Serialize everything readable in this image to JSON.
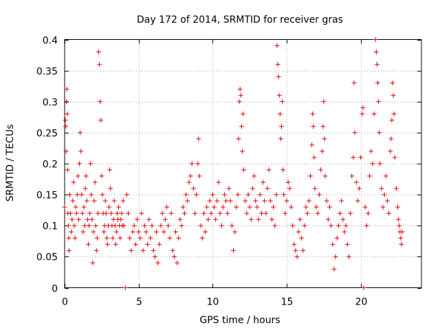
{
  "chart_data": {
    "type": "scatter",
    "title": "Day 172 of 2014, SRMTID for receiver gras",
    "xlabel": "GPS time / hours",
    "ylabel": "SRMTID / TECUs",
    "xlim": [
      0,
      24.1
    ],
    "ylim": [
      0,
      0.4
    ],
    "xticks": [
      0,
      5,
      10,
      15,
      20
    ],
    "xtick_labels": [
      "0",
      "5",
      "10",
      "15",
      "20"
    ],
    "yticks": [
      0,
      0.05,
      0.1,
      0.15,
      0.2,
      0.25,
      0.3,
      0.35,
      0.4
    ],
    "ytick_labels": [
      "0",
      "0.05",
      "0.1",
      "0.15",
      "0.2",
      "0.25",
      "0.3",
      "0.35",
      "0.4"
    ],
    "grid": true,
    "marker": "+",
    "color": "#e00000",
    "series": [
      {
        "name": "SRMTID",
        "points": [
          [
            0.0,
            0.13
          ],
          [
            0.05,
            0.27
          ],
          [
            0.08,
            0.26
          ],
          [
            0.1,
            0.22
          ],
          [
            0.12,
            0.3
          ],
          [
            0.15,
            0.32
          ],
          [
            0.18,
            0.28
          ],
          [
            0.2,
            0.19
          ],
          [
            0.22,
            0.12
          ],
          [
            0.25,
            0.1
          ],
          [
            0.28,
            0.08
          ],
          [
            0.3,
            0.06
          ],
          [
            0.35,
            0.15
          ],
          [
            0.4,
            0.12
          ],
          [
            0.45,
            0.09
          ],
          [
            0.5,
            0.11
          ],
          [
            0.55,
            0.14
          ],
          [
            0.6,
            0.17
          ],
          [
            0.65,
            0.1
          ],
          [
            0.7,
            0.08
          ],
          [
            0.75,
            0.13
          ],
          [
            0.8,
            0.12
          ],
          [
            0.85,
            0.15
          ],
          [
            0.9,
            0.18
          ],
          [
            0.95,
            0.11
          ],
          [
            1.0,
            0.2
          ],
          [
            1.05,
            0.25
          ],
          [
            1.1,
            0.22
          ],
          [
            1.15,
            0.15
          ],
          [
            1.2,
            0.12
          ],
          [
            1.25,
            0.09
          ],
          [
            1.3,
            0.13
          ],
          [
            1.35,
            0.1
          ],
          [
            1.4,
            0.16
          ],
          [
            1.45,
            0.18
          ],
          [
            1.5,
            0.14
          ],
          [
            1.55,
            0.11
          ],
          [
            1.6,
            0.07
          ],
          [
            1.65,
            0.1
          ],
          [
            1.7,
            0.12
          ],
          [
            1.75,
            0.2
          ],
          [
            1.8,
            0.15
          ],
          [
            1.85,
            0.11
          ],
          [
            1.9,
            0.04
          ],
          [
            1.95,
            0.09
          ],
          [
            2.0,
            0.14
          ],
          [
            2.05,
            0.17
          ],
          [
            2.1,
            0.1
          ],
          [
            2.15,
            0.06
          ],
          [
            2.2,
            0.08
          ],
          [
            2.25,
            0.12
          ],
          [
            2.3,
            0.38
          ],
          [
            2.35,
            0.36
          ],
          [
            2.4,
            0.3
          ],
          [
            2.45,
            0.27
          ],
          [
            2.5,
            0.18
          ],
          [
            2.55,
            0.15
          ],
          [
            2.6,
            0.12
          ],
          [
            2.65,
            0.09
          ],
          [
            2.7,
            0.1
          ],
          [
            2.75,
            0.14
          ],
          [
            2.8,
            0.12
          ],
          [
            2.85,
            0.08
          ],
          [
            2.9,
            0.07
          ],
          [
            2.95,
            0.1
          ],
          [
            3.0,
            0.13
          ],
          [
            3.05,
            0.19
          ],
          [
            3.1,
            0.16
          ],
          [
            3.15,
            0.12
          ],
          [
            3.2,
            0.1
          ],
          [
            3.25,
            0.08
          ],
          [
            3.3,
            0.11
          ],
          [
            3.35,
            0.14
          ],
          [
            3.4,
            0.1
          ],
          [
            3.45,
            0.07
          ],
          [
            3.5,
            0.09
          ],
          [
            3.55,
            0.12
          ],
          [
            3.6,
            0.11
          ],
          [
            3.65,
            0.13
          ],
          [
            3.7,
            0.1
          ],
          [
            3.75,
            0.08
          ],
          [
            3.8,
            0.11
          ],
          [
            3.85,
            0.12
          ],
          [
            3.9,
            0.1
          ],
          [
            3.95,
            0.14
          ],
          [
            4.0,
            0.1
          ],
          [
            4.1,
            0.0
          ],
          [
            4.2,
            0.15
          ],
          [
            4.3,
            0.12
          ],
          [
            4.4,
            0.08
          ],
          [
            4.5,
            0.06
          ],
          [
            4.6,
            0.09
          ],
          [
            4.7,
            0.1
          ],
          [
            4.8,
            0.07
          ],
          [
            4.9,
            0.11
          ],
          [
            5.0,
            0.09
          ],
          [
            5.1,
            0.08
          ],
          [
            5.2,
            0.12
          ],
          [
            5.3,
            0.06
          ],
          [
            5.4,
            0.1
          ],
          [
            5.5,
            0.09
          ],
          [
            5.6,
            0.07
          ],
          [
            5.7,
            0.11
          ],
          [
            5.8,
            0.08
          ],
          [
            5.9,
            0.1
          ],
          [
            6.0,
            0.06
          ],
          [
            6.1,
            0.05
          ],
          [
            6.2,
            0.09
          ],
          [
            6.3,
            0.04
          ],
          [
            6.4,
            0.07
          ],
          [
            6.5,
            0.1
          ],
          [
            6.6,
            0.12
          ],
          [
            6.7,
            0.09
          ],
          [
            6.8,
            0.11
          ],
          [
            6.9,
            0.13
          ],
          [
            7.0,
            0.1
          ],
          [
            7.1,
            0.08
          ],
          [
            7.2,
            0.12
          ],
          [
            7.3,
            0.06
          ],
          [
            7.4,
            0.05
          ],
          [
            7.5,
            0.09
          ],
          [
            7.6,
            0.04
          ],
          [
            7.7,
            0.08
          ],
          [
            7.8,
            0.11
          ],
          [
            7.9,
            0.1
          ],
          [
            8.0,
            0.13
          ],
          [
            8.1,
            0.12
          ],
          [
            8.2,
            0.15
          ],
          [
            8.3,
            0.14
          ],
          [
            8.4,
            0.17
          ],
          [
            8.5,
            0.18
          ],
          [
            8.6,
            0.2
          ],
          [
            8.7,
            0.16
          ],
          [
            8.8,
            0.12
          ],
          [
            8.9,
            0.15
          ],
          [
            9.0,
            0.2
          ],
          [
            9.05,
            0.24
          ],
          [
            9.1,
            0.18
          ],
          [
            9.2,
            0.1
          ],
          [
            9.3,
            0.08
          ],
          [
            9.4,
            0.12
          ],
          [
            9.5,
            0.09
          ],
          [
            9.6,
            0.13
          ],
          [
            9.7,
            0.11
          ],
          [
            9.8,
            0.14
          ],
          [
            9.9,
            0.12
          ],
          [
            10.0,
            0.15
          ],
          [
            10.1,
            0.13
          ],
          [
            10.2,
            0.11
          ],
          [
            10.3,
            0.14
          ],
          [
            10.4,
            0.17
          ],
          [
            10.5,
            0.12
          ],
          [
            10.6,
            0.1
          ],
          [
            10.7,
            0.13
          ],
          [
            10.8,
            0.15
          ],
          [
            10.9,
            0.14
          ],
          [
            11.0,
            0.12
          ],
          [
            11.1,
            0.16
          ],
          [
            11.2,
            0.14
          ],
          [
            11.3,
            0.1
          ],
          [
            11.4,
            0.06
          ],
          [
            11.5,
            0.09
          ],
          [
            11.6,
            0.13
          ],
          [
            11.7,
            0.15
          ],
          [
            11.75,
            0.24
          ],
          [
            11.8,
            0.3
          ],
          [
            11.85,
            0.32
          ],
          [
            11.9,
            0.31
          ],
          [
            11.95,
            0.26
          ],
          [
            12.0,
            0.22
          ],
          [
            12.05,
            0.28
          ],
          [
            12.1,
            0.19
          ],
          [
            12.2,
            0.14
          ],
          [
            12.3,
            0.12
          ],
          [
            12.4,
            0.15
          ],
          [
            12.5,
            0.13
          ],
          [
            12.6,
            0.11
          ],
          [
            12.7,
            0.16
          ],
          [
            12.8,
            0.18
          ],
          [
            12.9,
            0.14
          ],
          [
            13.0,
            0.13
          ],
          [
            13.1,
            0.11
          ],
          [
            13.2,
            0.15
          ],
          [
            13.3,
            0.12
          ],
          [
            13.4,
            0.17
          ],
          [
            13.5,
            0.14
          ],
          [
            13.6,
            0.12
          ],
          [
            13.7,
            0.16
          ],
          [
            13.8,
            0.19
          ],
          [
            13.9,
            0.14
          ],
          [
            14.0,
            0.11
          ],
          [
            14.1,
            0.13
          ],
          [
            14.2,
            0.1
          ],
          [
            14.3,
            0.15
          ],
          [
            14.35,
            0.39
          ],
          [
            14.4,
            0.36
          ],
          [
            14.45,
            0.34
          ],
          [
            14.5,
            0.31
          ],
          [
            14.55,
            0.28
          ],
          [
            14.6,
            0.24
          ],
          [
            14.65,
            0.26
          ],
          [
            14.7,
            0.3
          ],
          [
            14.75,
            0.19
          ],
          [
            14.8,
            0.15
          ],
          [
            14.9,
            0.12
          ],
          [
            15.0,
            0.14
          ],
          [
            15.1,
            0.17
          ],
          [
            15.2,
            0.16
          ],
          [
            15.3,
            0.13
          ],
          [
            15.4,
            0.1
          ],
          [
            15.5,
            0.07
          ],
          [
            15.6,
            0.06
          ],
          [
            15.7,
            0.05
          ],
          [
            15.8,
            0.09
          ],
          [
            15.9,
            0.11
          ],
          [
            16.0,
            0.08
          ],
          [
            16.1,
            0.06
          ],
          [
            16.2,
            0.1
          ],
          [
            16.3,
            0.13
          ],
          [
            16.4,
            0.12
          ],
          [
            16.5,
            0.14
          ],
          [
            16.6,
            0.18
          ],
          [
            16.7,
            0.23
          ],
          [
            16.75,
            0.28
          ],
          [
            16.8,
            0.26
          ],
          [
            16.85,
            0.21
          ],
          [
            16.9,
            0.16
          ],
          [
            17.0,
            0.13
          ],
          [
            17.1,
            0.12
          ],
          [
            17.2,
            0.15
          ],
          [
            17.3,
            0.19
          ],
          [
            17.4,
            0.22
          ],
          [
            17.45,
            0.26
          ],
          [
            17.5,
            0.3
          ],
          [
            17.55,
            0.24
          ],
          [
            17.6,
            0.18
          ],
          [
            17.7,
            0.14
          ],
          [
            17.8,
            0.11
          ],
          [
            17.9,
            0.13
          ],
          [
            18.0,
            0.1
          ],
          [
            18.1,
            0.07
          ],
          [
            18.2,
            0.03
          ],
          [
            18.3,
            0.05
          ],
          [
            18.4,
            0.08
          ],
          [
            18.5,
            0.1
          ],
          [
            18.6,
            0.12
          ],
          [
            18.7,
            0.14
          ],
          [
            18.8,
            0.11
          ],
          [
            18.9,
            0.09
          ],
          [
            19.0,
            0.1
          ],
          [
            19.1,
            0.07
          ],
          [
            19.2,
            0.05
          ],
          [
            19.3,
            0.12
          ],
          [
            19.4,
            0.18
          ],
          [
            19.5,
            0.21
          ],
          [
            19.55,
            0.33
          ],
          [
            19.6,
            0.25
          ],
          [
            19.7,
            0.17
          ],
          [
            19.8,
            0.14
          ],
          [
            19.9,
            0.16
          ],
          [
            20.0,
            0.21
          ],
          [
            20.1,
            0.28
          ],
          [
            20.15,
            0.29
          ],
          [
            20.2,
            0.0
          ],
          [
            20.3,
            0.13
          ],
          [
            20.4,
            0.1
          ],
          [
            20.5,
            0.12
          ],
          [
            20.6,
            0.18
          ],
          [
            20.7,
            0.22
          ],
          [
            20.8,
            0.2
          ],
          [
            20.9,
            0.28
          ],
          [
            21.0,
            0.4
          ],
          [
            21.05,
            0.38
          ],
          [
            21.1,
            0.36
          ],
          [
            21.15,
            0.33
          ],
          [
            21.2,
            0.3
          ],
          [
            21.25,
            0.25
          ],
          [
            21.3,
            0.2
          ],
          [
            21.4,
            0.16
          ],
          [
            21.5,
            0.13
          ],
          [
            21.6,
            0.15
          ],
          [
            21.7,
            0.18
          ],
          [
            21.8,
            0.14
          ],
          [
            21.9,
            0.12
          ],
          [
            22.0,
            0.22
          ],
          [
            22.05,
            0.24
          ],
          [
            22.1,
            0.27
          ],
          [
            22.15,
            0.33
          ],
          [
            22.2,
            0.31
          ],
          [
            22.25,
            0.28
          ],
          [
            22.3,
            0.21
          ],
          [
            22.4,
            0.16
          ],
          [
            22.5,
            0.13
          ],
          [
            22.55,
            0.11
          ],
          [
            22.6,
            0.1
          ],
          [
            22.65,
            0.09
          ],
          [
            22.7,
            0.08
          ],
          [
            22.75,
            0.07
          ],
          [
            22.8,
            0.09
          ]
        ]
      }
    ]
  }
}
